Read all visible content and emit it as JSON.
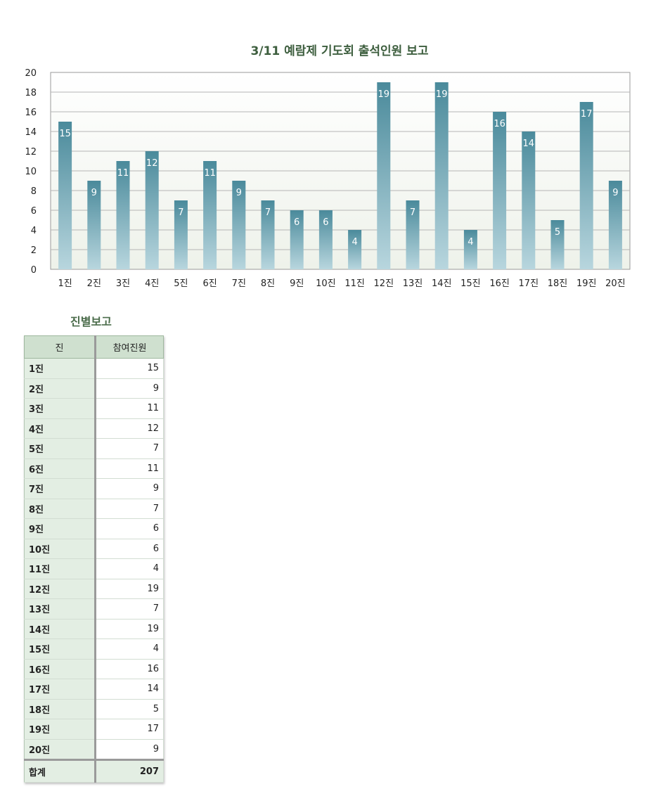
{
  "chart_data": {
    "type": "bar",
    "title": "3/11 예람제 기도회 출석인원 보고",
    "categories": [
      "1진",
      "2진",
      "3진",
      "4진",
      "5진",
      "6진",
      "7진",
      "8진",
      "9진",
      "10진",
      "11진",
      "12진",
      "13진",
      "14진",
      "15진",
      "16진",
      "17진",
      "18진",
      "19진",
      "20진"
    ],
    "values": [
      15,
      9,
      11,
      12,
      7,
      11,
      9,
      7,
      6,
      6,
      4,
      19,
      7,
      19,
      4,
      16,
      14,
      5,
      17,
      9
    ],
    "ylim": [
      0,
      20
    ],
    "yticks": [
      0,
      2,
      4,
      6,
      8,
      10,
      12,
      14,
      16,
      18,
      20
    ],
    "grid": true,
    "data_labels": true,
    "colors": {
      "bar_top": "#4a8a9b",
      "bar_bottom": "#b8d6de",
      "label": "#ffffff"
    }
  },
  "table": {
    "title": "진별보고",
    "headers": [
      "진",
      "참여진원"
    ],
    "rows": [
      {
        "name": "1진",
        "count": "15"
      },
      {
        "name": "2진",
        "count": "9"
      },
      {
        "name": "3진",
        "count": "11"
      },
      {
        "name": "4진",
        "count": "12"
      },
      {
        "name": "5진",
        "count": "7"
      },
      {
        "name": "6진",
        "count": "11"
      },
      {
        "name": "7진",
        "count": "9"
      },
      {
        "name": "8진",
        "count": "7"
      },
      {
        "name": "9진",
        "count": "6"
      },
      {
        "name": "10진",
        "count": "6"
      },
      {
        "name": "11진",
        "count": "4"
      },
      {
        "name": "12진",
        "count": "19"
      },
      {
        "name": "13진",
        "count": "7"
      },
      {
        "name": "14진",
        "count": "19"
      },
      {
        "name": "15진",
        "count": "4"
      },
      {
        "name": "16진",
        "count": "16"
      },
      {
        "name": "17진",
        "count": "14"
      },
      {
        "name": "18진",
        "count": "5"
      },
      {
        "name": "19진",
        "count": "17"
      },
      {
        "name": "20진",
        "count": "9"
      }
    ],
    "total_label": "합계",
    "total_value": "207"
  }
}
